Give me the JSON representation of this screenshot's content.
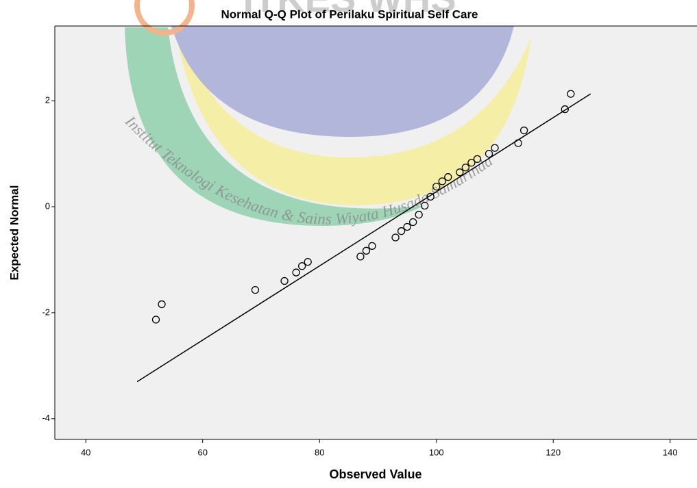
{
  "chart_data": {
    "type": "scatter",
    "title": "Normal Q-Q Plot of Perilaku Spiritual Self Care",
    "x_label": "Observed Value",
    "y_label": "Expected Normal",
    "watermark_logo": "ITKES WHS",
    "watermark": "Institut Teknologi Kesehatan & Sains Wiyata Husada Samarinda",
    "x": [
      52,
      53,
      69,
      74,
      76,
      77,
      78,
      87,
      88,
      89,
      93,
      94,
      95,
      96,
      97,
      98,
      99,
      100,
      101,
      102,
      104,
      105,
      106,
      107,
      109,
      110,
      114,
      115,
      122,
      123
    ],
    "y": [
      -2.13,
      -1.84,
      -1.57,
      -1.4,
      -1.24,
      -1.12,
      -1.04,
      -0.94,
      -0.83,
      -0.74,
      -0.58,
      -0.46,
      -0.38,
      -0.29,
      -0.15,
      0.02,
      0.19,
      0.38,
      0.48,
      0.56,
      0.65,
      0.74,
      0.83,
      0.9,
      1.0,
      1.11,
      1.2,
      1.44,
      1.84,
      2.13
    ],
    "marker_color": "#000000",
    "reference_line": {
      "x": [
        48.8,
        126.4
      ],
      "y": [
        -3.3,
        2.13
      ],
      "color": "#000000"
    },
    "xlim": [
      34.7,
      144.6
    ],
    "ylim": [
      -4.39,
      3.41
    ],
    "xticks": [
      40,
      60,
      80,
      100,
      120,
      140
    ],
    "yticks": [
      -4,
      -2,
      0,
      2
    ],
    "grid": false,
    "plot_background": "#f0f0f0"
  }
}
